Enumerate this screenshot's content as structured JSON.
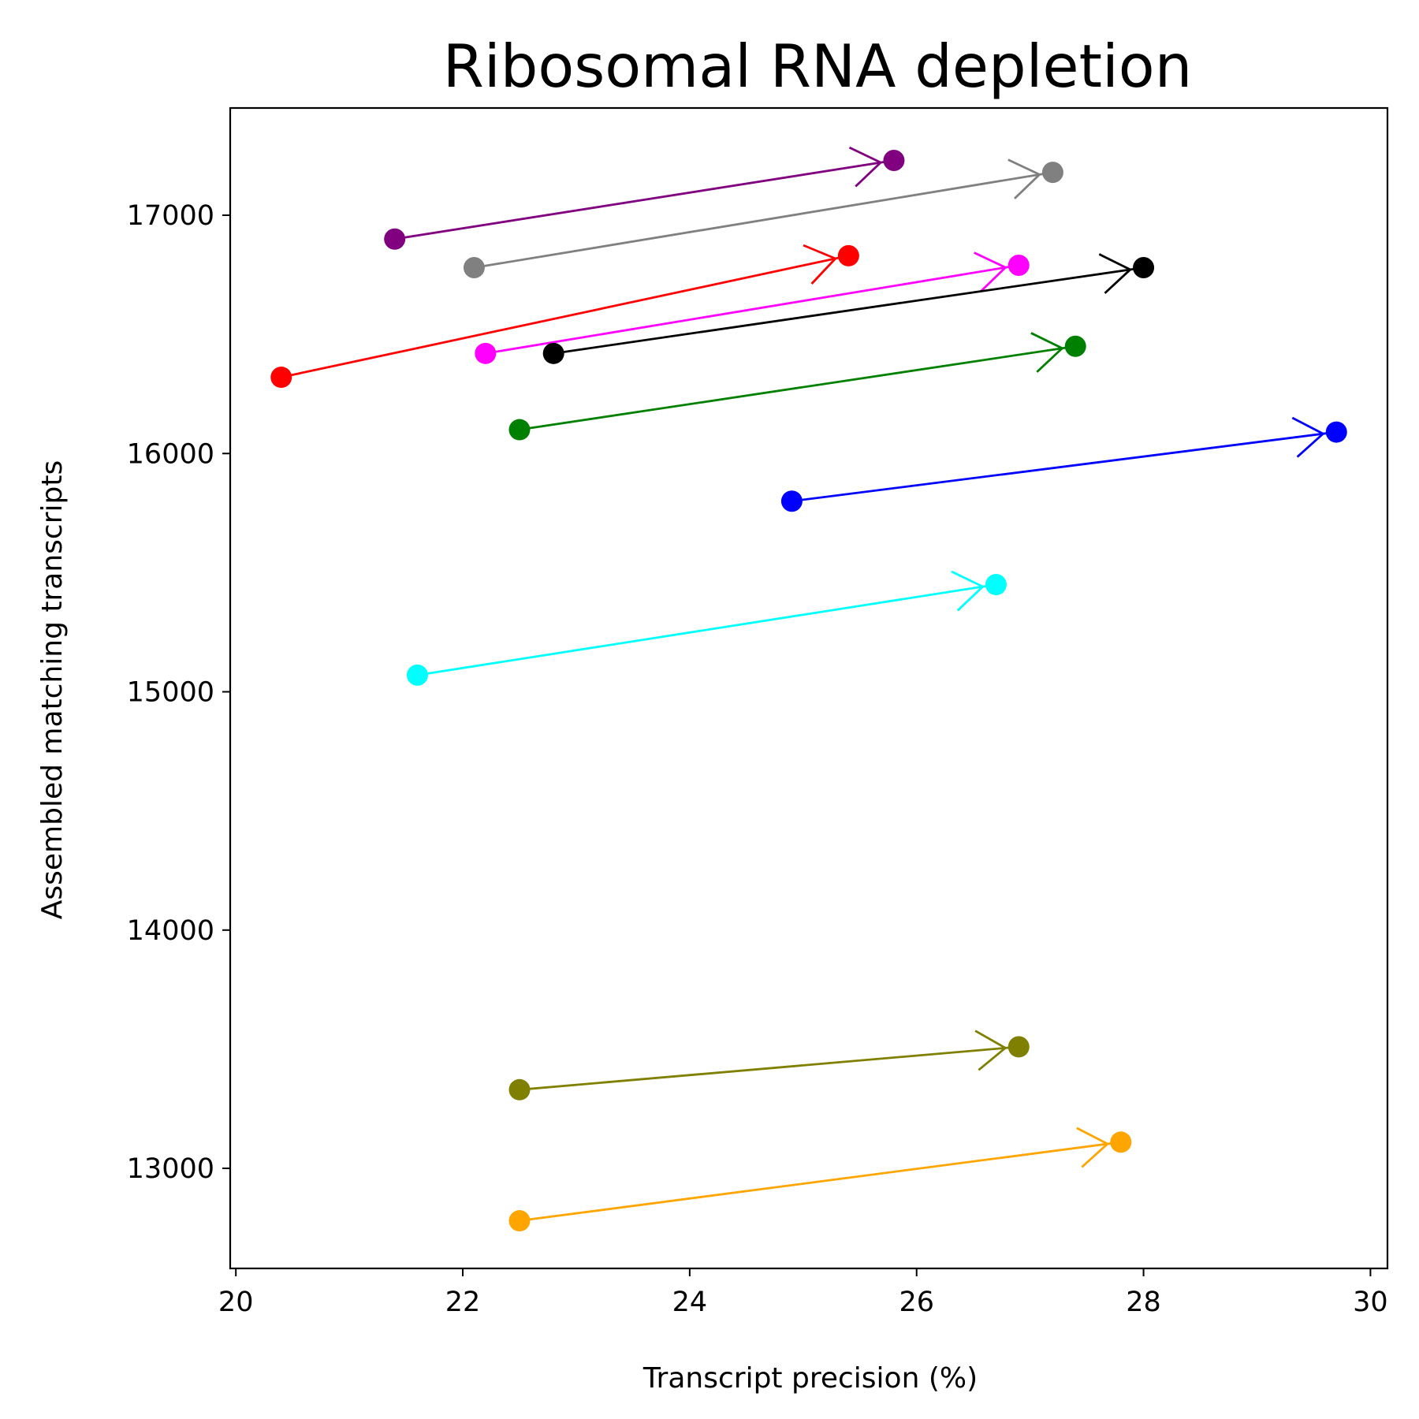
{
  "chart_data": {
    "type": "scatter",
    "title": "Ribosomal RNA depletion",
    "xlabel": "Transcript precision (%)",
    "ylabel": "Assembled matching transcripts",
    "xlim": [
      19.95,
      30.15
    ],
    "ylim": [
      12580,
      17450
    ],
    "xticks": [
      20,
      22,
      24,
      26,
      28,
      30
    ],
    "yticks": [
      13000,
      14000,
      15000,
      16000,
      17000
    ],
    "grid": false,
    "legend": "none",
    "series": [
      {
        "color": "#800080",
        "from": [
          21.4,
          16900
        ],
        "to": [
          25.8,
          17230
        ]
      },
      {
        "color": "#808080",
        "from": [
          22.1,
          16780
        ],
        "to": [
          27.2,
          17180
        ]
      },
      {
        "color": "#ff0000",
        "from": [
          20.4,
          16320
        ],
        "to": [
          25.4,
          16830
        ]
      },
      {
        "color": "#ff00ff",
        "from": [
          22.2,
          16420
        ],
        "to": [
          26.9,
          16790
        ]
      },
      {
        "color": "#000000",
        "from": [
          22.8,
          16420
        ],
        "to": [
          28.0,
          16780
        ]
      },
      {
        "color": "#008000",
        "from": [
          22.5,
          16100
        ],
        "to": [
          27.4,
          16450
        ]
      },
      {
        "color": "#0000ff",
        "from": [
          24.9,
          15800
        ],
        "to": [
          29.7,
          16090
        ]
      },
      {
        "color": "#00ffff",
        "from": [
          21.6,
          15070
        ],
        "to": [
          26.7,
          15450
        ]
      },
      {
        "color": "#808000",
        "from": [
          22.5,
          13330
        ],
        "to": [
          26.9,
          13510
        ]
      },
      {
        "color": "#ffa500",
        "from": [
          22.5,
          12780
        ],
        "to": [
          27.8,
          13110
        ]
      }
    ]
  }
}
